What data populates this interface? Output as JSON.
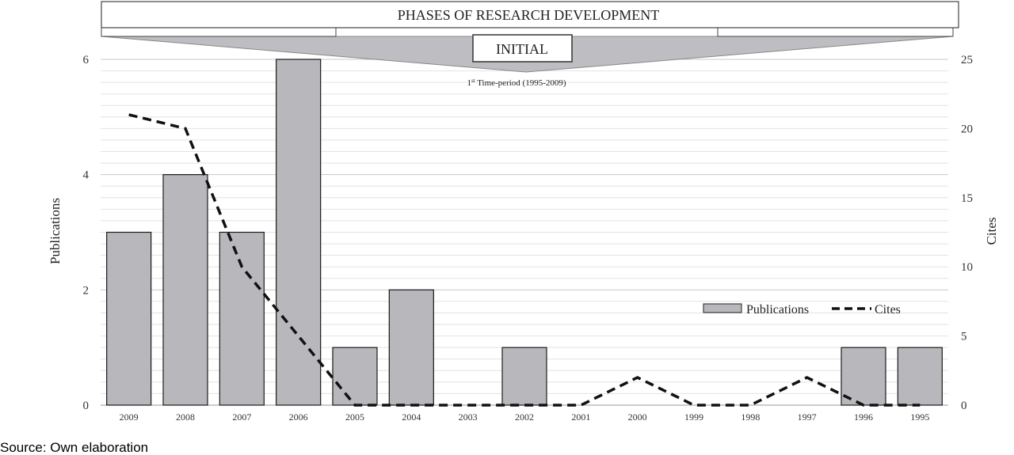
{
  "header": {
    "banner_title": "PHASES OF RESEARCH DEVELOPMENT",
    "phase_label": "INITIAL",
    "period_sup": "st",
    "period_text_prefix": "1",
    "period_text_rest": " Time-period (1995-2009)"
  },
  "source": "Source: Own elaboration",
  "chart_data": {
    "type": "bar",
    "categories": [
      "2009",
      "2008",
      "2007",
      "2006",
      "2005",
      "2004",
      "2003",
      "2002",
      "2001",
      "2000",
      "1999",
      "1998",
      "1997",
      "1996",
      "1995"
    ],
    "series": [
      {
        "name": "Publications",
        "kind": "bar",
        "axis": "left",
        "values": [
          3,
          4,
          3,
          6,
          1,
          2,
          0,
          1,
          0,
          0,
          0,
          0,
          0,
          1,
          1
        ],
        "color": "#b8b8bc"
      },
      {
        "name": "Cites",
        "kind": "line",
        "style": "dashed",
        "axis": "right",
        "values": [
          21,
          20,
          10,
          5,
          0,
          0,
          0,
          0,
          0,
          2,
          0,
          0,
          2,
          0,
          0
        ],
        "color": "#111111"
      }
    ],
    "ylabel": "Publications",
    "y2label": "Cites",
    "ylim": [
      0,
      6
    ],
    "y2lim": [
      0,
      25
    ],
    "yticks": [
      "0",
      "2",
      "4",
      "6"
    ],
    "y2ticks": [
      "0",
      "5",
      "10",
      "15",
      "20",
      "25"
    ],
    "grid": true,
    "legend_position": "lower-right"
  }
}
